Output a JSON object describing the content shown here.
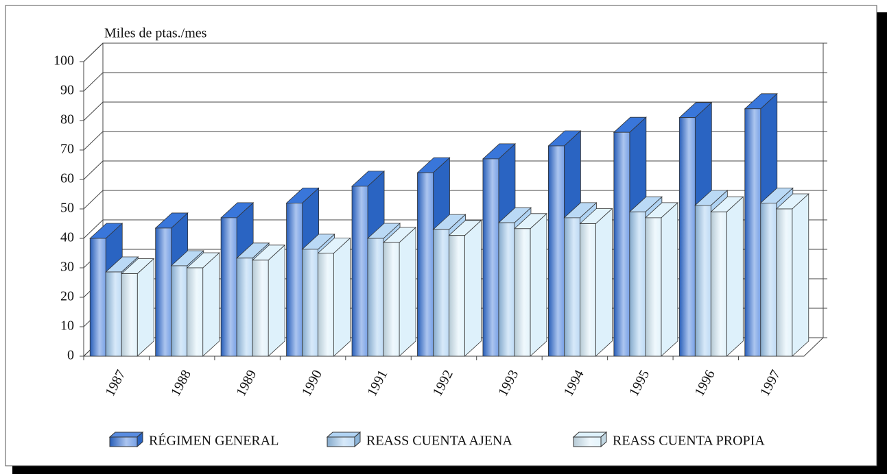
{
  "chart_data": {
    "type": "bar3d",
    "y_label": "Miles de ptas./mes",
    "categories": [
      "1987",
      "1988",
      "1989",
      "1990",
      "1991",
      "1992",
      "1993",
      "1994",
      "1995",
      "1996",
      "1997"
    ],
    "series": [
      {
        "name": "RÉGIMEN GENERAL",
        "color": "#2f6fd8",
        "values": [
          40,
          43.5,
          47,
          52,
          57.7,
          62.3,
          67,
          71.4,
          76,
          81,
          84
        ]
      },
      {
        "name": "REASS CUENTA AJENA",
        "color": "#9cc8f0",
        "values": [
          28.6,
          30.7,
          33.3,
          36.3,
          40,
          43,
          45.3,
          47,
          49,
          51.2,
          52
        ]
      },
      {
        "name": "REASS CUENTA PROPIA",
        "color": "#d6eefa",
        "values": [
          28,
          30,
          32.6,
          35,
          38.6,
          41,
          43.3,
          45,
          47,
          49,
          50
        ]
      }
    ],
    "ylim": [
      0,
      100
    ],
    "yticks": [
      0,
      10,
      20,
      30,
      40,
      50,
      60,
      70,
      80,
      90,
      100
    ],
    "grid": true
  }
}
